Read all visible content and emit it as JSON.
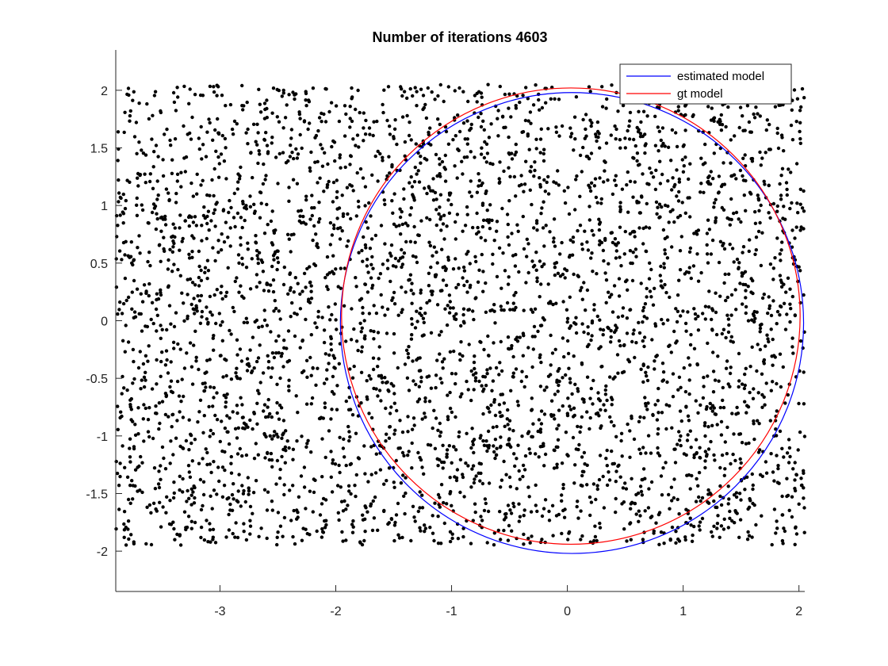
{
  "chart_data": {
    "type": "scatter",
    "title": "Number of iterations 4603",
    "xlabel": "",
    "ylabel": "",
    "xlim": [
      -3.9,
      2.05
    ],
    "ylim": [
      -2.35,
      2.35
    ],
    "xticks": [
      -3,
      -2,
      -1,
      0,
      1,
      2
    ],
    "yticks": [
      -2,
      -1.5,
      -1,
      -0.5,
      0,
      0.5,
      1,
      1.5,
      2
    ],
    "xtick_labels": [
      "-3",
      "-2",
      "-1",
      "0",
      "1",
      "2"
    ],
    "ytick_labels": [
      "-2",
      "-1.5",
      "-1",
      "-0.5",
      "0",
      "0.5",
      "1",
      "1.5",
      "2"
    ],
    "grid": false,
    "legend_position": "top-right",
    "points": {
      "name": "",
      "color": "#000000",
      "count": 4000,
      "x_range": [
        -3.9,
        2.05
      ],
      "y_range": [
        -1.95,
        2.05
      ],
      "seed": 4603
    },
    "series": [
      {
        "name": "estimated model",
        "kind": "circle",
        "center": [
          0.04,
          -0.02
        ],
        "radius": 2.0,
        "color": "#0000ff"
      },
      {
        "name": "gt model",
        "kind": "circle",
        "center": [
          0.03,
          0.04
        ],
        "radius": 1.98,
        "color": "#ff0000"
      }
    ],
    "legend": [
      "estimated model",
      "gt model"
    ]
  }
}
